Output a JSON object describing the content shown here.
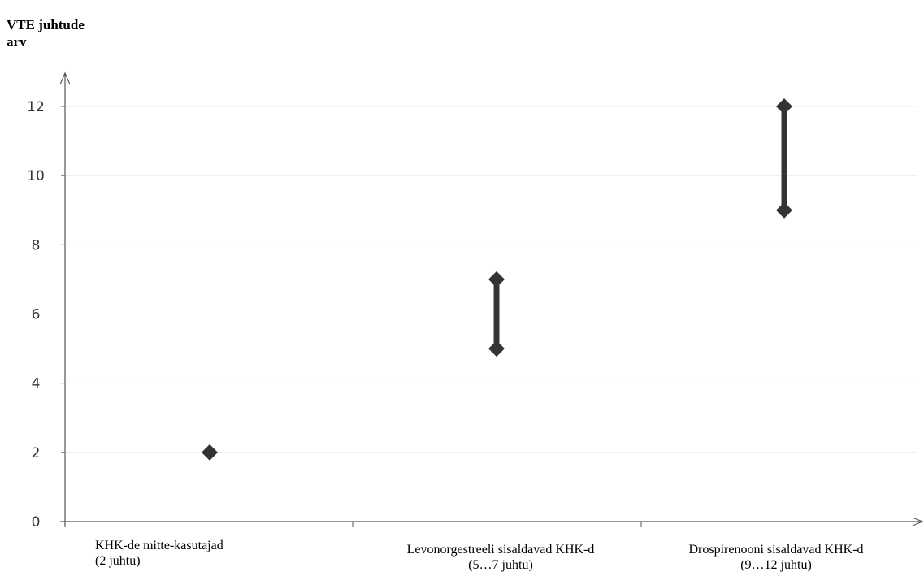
{
  "chart_data": {
    "type": "scatter",
    "title": "",
    "ylabel_lines": [
      "VTE juhtude",
      "arv"
    ],
    "xlabel": "",
    "ylim": [
      0,
      12
    ],
    "yticks": [
      0,
      2,
      4,
      6,
      8,
      10,
      12
    ],
    "grid": true,
    "categories": [
      {
        "lines": [
          "KHK-de mitte-kasutajad",
          "(2 juhtu)"
        ],
        "low": 2,
        "high": 2
      },
      {
        "lines": [
          "Levonorgestreeli sisaldavad KHK-d",
          "(5…7 juhtu)"
        ],
        "low": 5,
        "high": 7
      },
      {
        "lines": [
          "Drospirenooni sisaldavad KHK-d",
          "(9…12 juhtu)"
        ],
        "low": 9,
        "high": 12
      }
    ],
    "colors": {
      "marker": "#333333",
      "grid": "#e8e8e8",
      "axis": "#555555"
    }
  }
}
